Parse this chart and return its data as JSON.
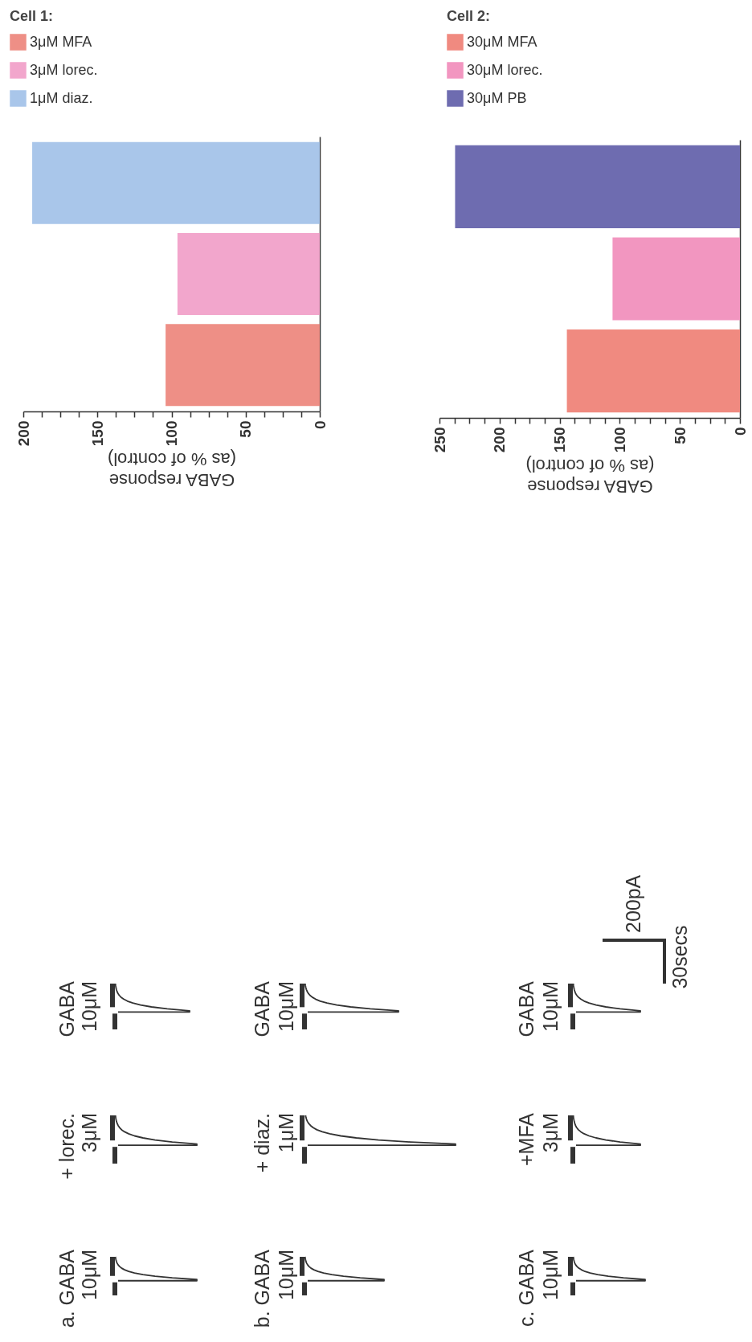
{
  "chart_data": [
    {
      "type": "other",
      "annotations": [
        "a. GABA\n10μM",
        "+ lorec.\n3μM",
        "GABA\n10μM",
        "b. GABA\n10μM",
        "+ diaz.\n1μM",
        "GABA\n10μM",
        "c. GABA\n10μM",
        "+MFA\n3μM",
        "GABA\n10μM",
        "200pA",
        "30secs"
      ]
    },
    {
      "type": "bar",
      "orientation": "horizontal",
      "categories": [
        null,
        null,
        null
      ],
      "series": [
        {
          "name": "3μM MFA",
          "color": "#ee8f86",
          "values": [
            null,
            null,
            104
          ]
        },
        {
          "name": "3μM lorec.",
          "color": "#f2a6cc",
          "values": [
            null,
            96,
            null
          ]
        },
        {
          "name": "1μM diaz.",
          "color": "#a9c6ea",
          "values": [
            194,
            null,
            null
          ]
        }
      ],
      "xlabel": "GABA response\n(as % of control)",
      "xlim": [
        200,
        0
      ],
      "xticks": [
        200,
        {
          "value": 187.5,
          "label": null
        },
        {
          "value": 175,
          "label": null
        },
        {
          "value": 162.5,
          "label": null
        },
        150,
        {
          "value": 137.5,
          "label": null
        },
        {
          "value": 125,
          "label": null
        },
        {
          "value": 112.5,
          "label": null
        },
        100,
        {
          "value": 87.5,
          "label": null
        },
        {
          "value": 75,
          "label": null
        },
        {
          "value": 62.5,
          "label": null
        },
        50,
        {
          "value": 37.5,
          "label": null
        },
        {
          "value": 25,
          "label": null
        },
        {
          "value": 12.5,
          "label": null
        },
        0
      ],
      "legend_title": "Cell 1:",
      "legend": "top left",
      "tick_labels": "x",
      "grid": false
    },
    {
      "type": "bar",
      "orientation": "horizontal",
      "categories": [
        null,
        null,
        null
      ],
      "series": [
        {
          "name": "30μM MFA",
          "color": "#f08a80",
          "values": [
            null,
            null,
            144
          ]
        },
        {
          "name": "30μM lorec.",
          "color": "#f296c0",
          "values": [
            null,
            106,
            null
          ]
        },
        {
          "name": "30μM PB",
          "color": "#6e6cb0",
          "values": [
            237,
            null,
            null
          ]
        }
      ],
      "xlabel": "GABA response\n(as % of control)",
      "xlim": [
        250,
        0
      ],
      "xticks": [
        250,
        {
          "value": 237.5,
          "label": null
        },
        {
          "value": 225,
          "label": null
        },
        {
          "value": 212.5,
          "label": null
        },
        200,
        {
          "value": 187.5,
          "label": null
        },
        {
          "value": 175,
          "label": null
        },
        {
          "value": 162.5,
          "label": null
        },
        150,
        {
          "value": 137.5,
          "label": null
        },
        {
          "value": 125,
          "label": null
        },
        {
          "value": 112.5,
          "label": null
        },
        100,
        {
          "value": 87.5,
          "label": null
        },
        {
          "value": 75,
          "label": null
        },
        {
          "value": 62.5,
          "label": null
        },
        50,
        {
          "value": 37.5,
          "label": null
        },
        {
          "value": 25,
          "label": null
        },
        {
          "value": 12.5,
          "label": null
        },
        0
      ],
      "legend_title": "Cell 2:",
      "legend": "top left",
      "tick_labels": "x",
      "grid": false
    }
  ]
}
